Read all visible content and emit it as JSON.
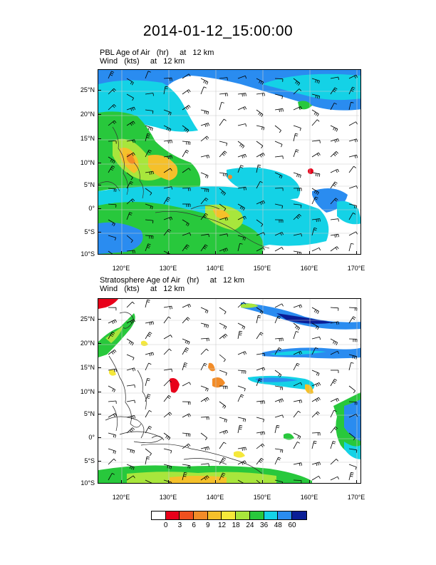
{
  "title": "2014-01-12_15:00:00",
  "panels": [
    {
      "id": "pbl",
      "line1": "PBL Age of Air   (hr)     at   12 km",
      "line2": "Wind   (kts)     at   12 km"
    },
    {
      "id": "strat",
      "line1": "Stratosphere Age of Air   (hr)     at   12 km",
      "line2": "Wind   (kts)     at   12 km"
    }
  ],
  "axes": {
    "lat_ticks": [
      "25°N",
      "20°N",
      "15°N",
      "10°N",
      "5°N",
      "0°",
      "5°S",
      "10°S"
    ],
    "lon_ticks": [
      "120°E",
      "130°E",
      "140°E",
      "150°E",
      "160°E",
      "170°E"
    ]
  },
  "colorbar": {
    "labels": [
      "0",
      "3",
      "6",
      "9",
      "12",
      "18",
      "24",
      "36",
      "48",
      "60"
    ],
    "colors": [
      "#ffffff",
      "#e8001a",
      "#f0501e",
      "#f28c28",
      "#f5c02a",
      "#f5e83a",
      "#a8e63c",
      "#28c83c",
      "#14d2e6",
      "#2a8cf0",
      "#0a1e96"
    ]
  }
}
